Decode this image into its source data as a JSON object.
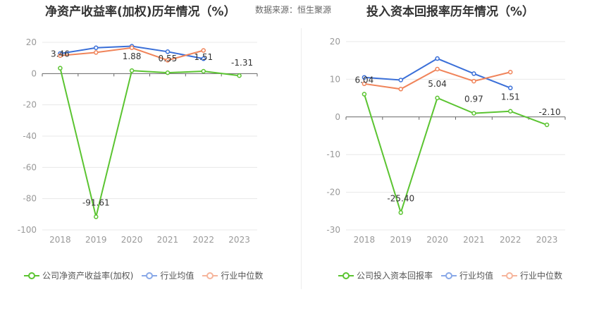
{
  "header": {
    "left_title": "净资产收益率(加权)历年情况（%）",
    "source": "数据来源：恒生聚源",
    "right_title": "投入资本回报率历年情况（%）"
  },
  "chart_data": [
    {
      "type": "line",
      "title": "净资产收益率(加权)历年情况（%）",
      "categories": [
        "2018",
        "2019",
        "2020",
        "2021",
        "2022",
        "2023"
      ],
      "ylim": [
        -100,
        20
      ],
      "yticks": [
        20,
        0,
        -20,
        -40,
        -60,
        -80,
        -100
      ],
      "grid": true,
      "legend_position": "bottom-left",
      "series": [
        {
          "name": "公司净资产收益率(加权)",
          "color": "#5bc431",
          "values": [
            3.46,
            -91.61,
            1.88,
            0.55,
            1.51,
            -1.31
          ],
          "labels": [
            "3.46",
            "-91.61",
            "1.88",
            "0.55",
            "1.51",
            "-1.31"
          ]
        },
        {
          "name": "行业均值",
          "color": "#3a6fd8",
          "values": [
            12.8,
            16.5,
            17.5,
            14.0,
            9.5,
            null
          ]
        },
        {
          "name": "行业中位数",
          "color": "#f0845a",
          "values": [
            11.5,
            13.5,
            16.5,
            8.5,
            14.8,
            null
          ]
        }
      ]
    },
    {
      "type": "line",
      "title": "投入资本回报率历年情况（%）",
      "categories": [
        "2018",
        "2019",
        "2020",
        "2021",
        "2022",
        "2023"
      ],
      "ylim": [
        -30,
        20
      ],
      "yticks": [
        20,
        10,
        0,
        -10,
        -20,
        -30
      ],
      "grid": true,
      "legend_position": "bottom-left",
      "series": [
        {
          "name": "公司投入资本回报率",
          "color": "#5bc431",
          "values": [
            6.04,
            -25.4,
            5.04,
            0.97,
            1.51,
            -2.1
          ],
          "labels": [
            "6.04",
            "-25.40",
            "5.04",
            "0.97",
            "1.51",
            "-2.10"
          ]
        },
        {
          "name": "行业均值",
          "color": "#3a6fd8",
          "values": [
            10.5,
            9.8,
            15.5,
            11.5,
            7.7,
            null
          ]
        },
        {
          "name": "行业中位数",
          "color": "#f0845a",
          "values": [
            8.8,
            7.4,
            12.7,
            9.5,
            11.9,
            null
          ]
        }
      ]
    }
  ]
}
